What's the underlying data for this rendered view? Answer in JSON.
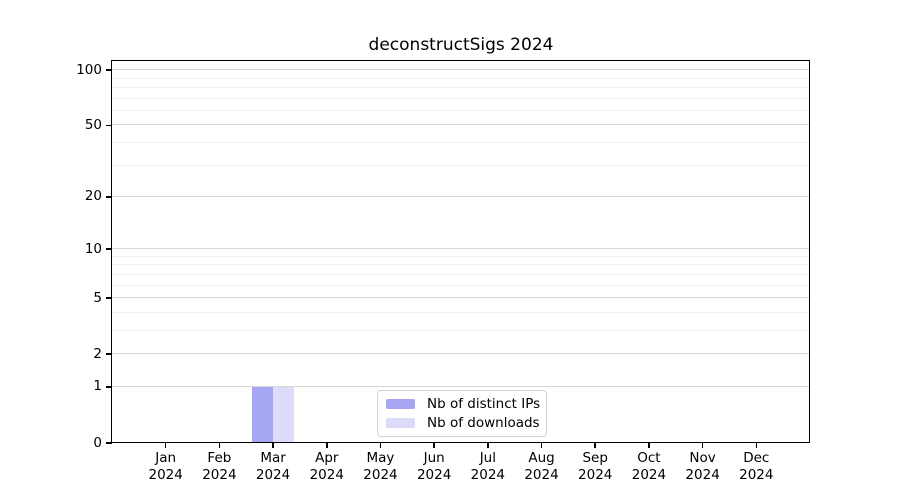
{
  "figure": {
    "title": "deconstructSigs 2024"
  },
  "chart_data": {
    "type": "bar",
    "title": "deconstructSigs 2024",
    "categories": [
      "Jan 2024",
      "Feb 2024",
      "Mar 2024",
      "Apr 2024",
      "May 2024",
      "Jun 2024",
      "Jul 2024",
      "Aug 2024",
      "Sep 2024",
      "Oct 2024",
      "Nov 2024",
      "Dec 2024"
    ],
    "series": [
      {
        "name": "Nb of distinct IPs",
        "color": "#a6a6f5",
        "values": [
          0,
          0,
          1,
          0,
          0,
          0,
          0,
          0,
          0,
          0,
          0,
          0
        ]
      },
      {
        "name": "Nb of downloads",
        "color": "#dcdcfa",
        "values": [
          0,
          0,
          1,
          0,
          0,
          0,
          0,
          0,
          0,
          0,
          0,
          0
        ]
      }
    ],
    "xlabel": "",
    "ylabel": "",
    "y_scale": "log1p",
    "y_ticks": [
      0,
      1,
      2,
      5,
      10,
      20,
      50,
      100
    ],
    "y_minor_ticks": [
      3,
      4,
      6,
      7,
      8,
      9,
      30,
      40,
      60,
      70,
      80,
      90
    ],
    "ylim": [
      0,
      112
    ],
    "grid": "horizontal",
    "legend": {
      "position": "bottom-center"
    }
  },
  "colors": {
    "series_ips": "#a6a6f5",
    "series_downloads": "#dcdcfa",
    "major_grid": "#d6d6d6",
    "minor_grid": "#f0f0f0",
    "spine": "#000000",
    "legend_border": "#d2d2d2",
    "background": "#ffffff"
  }
}
